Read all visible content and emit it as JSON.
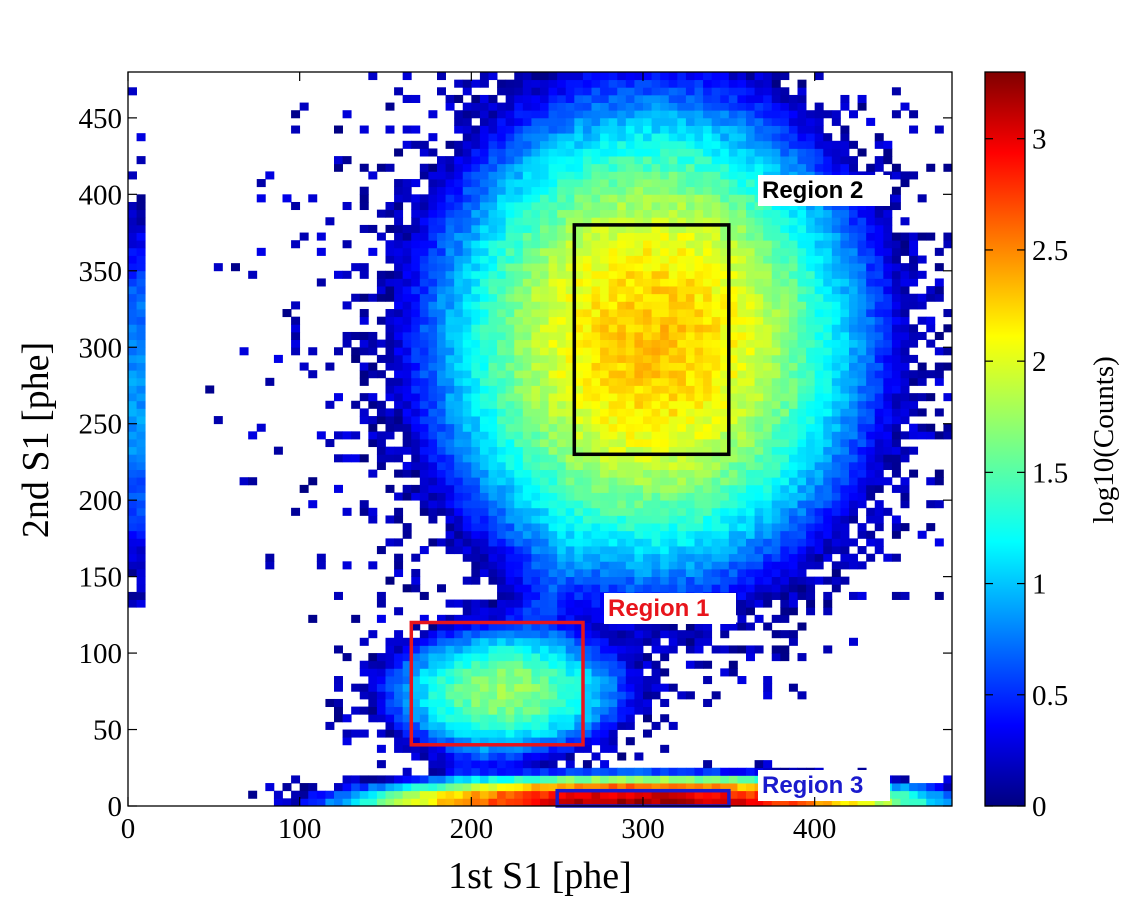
{
  "chart_data": {
    "type": "heatmap",
    "title": "",
    "xlabel": "1st S1 [phe]",
    "ylabel": "2nd S1 [phe]",
    "xlim": [
      0,
      480
    ],
    "ylim": [
      0,
      480
    ],
    "x_ticks": [
      0,
      100,
      200,
      300,
      400
    ],
    "y_ticks": [
      0,
      50,
      100,
      150,
      200,
      250,
      300,
      350,
      400,
      450
    ],
    "colorbar": {
      "label": "log10(Counts)",
      "range": [
        0,
        3.3
      ],
      "ticks": [
        "0",
        "0.5",
        "1",
        "1.5",
        "2",
        "2.5",
        "3"
      ],
      "colormap": "jet"
    },
    "bin_size": 5,
    "clusters": [
      {
        "center_x": 305,
        "center_y": 305,
        "sigma_x": 48,
        "sigma_y": 60,
        "peak_log10": 2.25
      },
      {
        "center_x": 220,
        "center_y": 75,
        "sigma_x": 30,
        "sigma_y": 18,
        "peak_log10": 1.7
      },
      {
        "center_x": 300,
        "center_y": 2,
        "sigma_x": 55,
        "sigma_y": 6,
        "peak_log10": 3.2
      }
    ],
    "regions": [
      {
        "name": "Region 1",
        "x": [
          165,
          265
        ],
        "y": [
          40,
          120
        ],
        "color": "#e8141b"
      },
      {
        "name": "Region 2",
        "x": [
          260,
          350
        ],
        "y": [
          230,
          380
        ],
        "color": "#000000"
      },
      {
        "name": "Region 3",
        "x": [
          250,
          350
        ],
        "y": [
          0,
          10
        ],
        "color": "#1a1acd"
      }
    ]
  }
}
